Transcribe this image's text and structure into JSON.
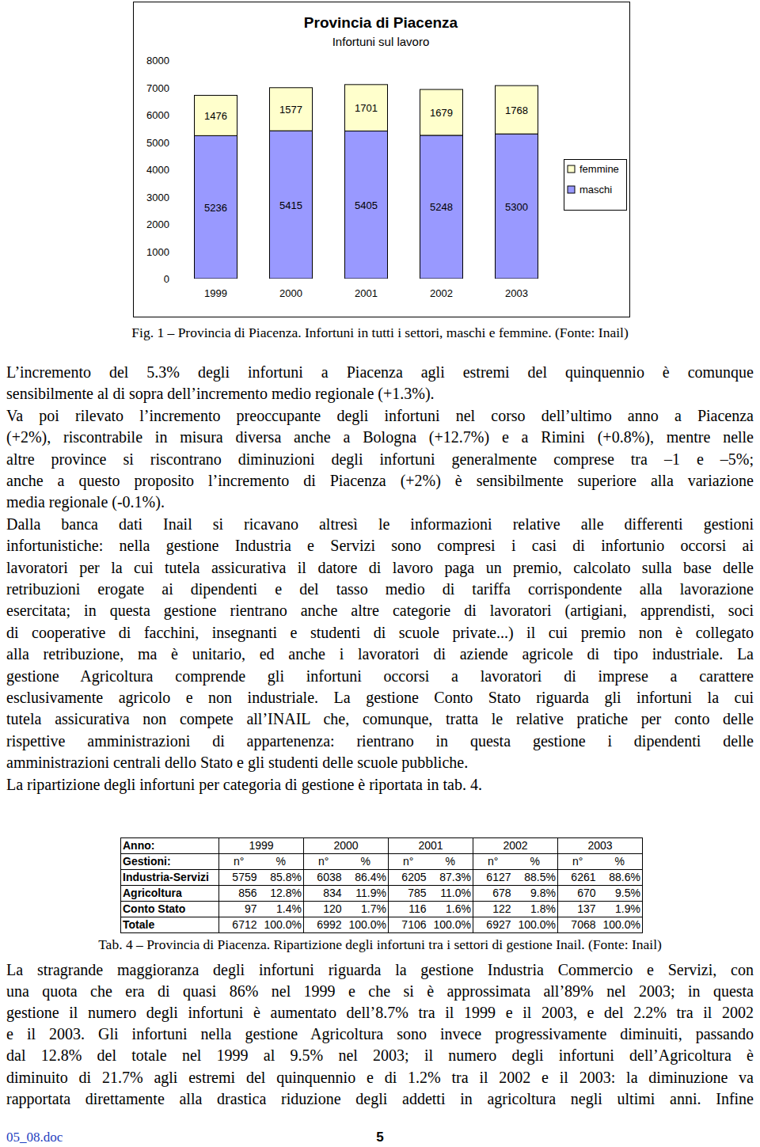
{
  "chart_data": {
    "type": "bar",
    "stacked": true,
    "title": "Provincia di Piacenza",
    "subtitle": "Infortuni sul lavoro",
    "categories": [
      "1999",
      "2000",
      "2001",
      "2002",
      "2003"
    ],
    "series": [
      {
        "name": "maschi",
        "color": "#9999ff",
        "values": [
          5236,
          5415,
          5405,
          5248,
          5300
        ]
      },
      {
        "name": "femmine",
        "color": "#ffffcc",
        "values": [
          1476,
          1577,
          1701,
          1679,
          1768
        ]
      }
    ],
    "ylim": [
      0,
      8000
    ],
    "yticks": [
      0,
      1000,
      2000,
      3000,
      4000,
      5000,
      6000,
      7000,
      8000
    ],
    "grid": false,
    "legend": "right",
    "data_labels": true
  },
  "figure_caption": "Fig. 1 – Provincia di Piacenza. Infortuni in tutti i settori, maschi e femmine. (Fonte: Inail)",
  "body_before_table": [
    [
      "L’incremento del 5.3% degli infortuni a Piacenza agli estremi del quinquennio è comunque",
      "sensibilmente al di sopra dell’incremento medio regionale (+1.3%)."
    ],
    [
      "Va poi rilevato l’incremento preoccupante degli infortuni nel corso dell’ultimo anno a Piacenza",
      "(+2%), riscontrabile in misura diversa anche a Bologna (+12.7%) e a Rimini (+0.8%), mentre nelle",
      "altre province si riscontrano diminuzioni degli infortuni generalmente comprese tra –1 e –5%;",
      "anche a questo proposito l’incremento di Piacenza (+2%) è sensibilmente superiore alla variazione",
      "media regionale (-0.1%)."
    ],
    [
      "Dalla banca dati Inail si ricavano altresì le informazioni relative alle differenti gestioni",
      "infortunistiche: nella gestione Industria e Servizi sono compresi i casi di infortunio occorsi ai",
      "lavoratori per la cui tutela assicurativa il datore di lavoro paga un premio, calcolato sulla base delle",
      "retribuzioni erogate ai dipendenti e del tasso medio di tariffa corrispondente alla lavorazione",
      "esercitata; in questa gestione rientrano anche altre categorie di lavoratori (artigiani, apprendisti, soci",
      "di cooperative di facchini, insegnanti e studenti di scuole private...) il cui premio non è collegato",
      "alla retribuzione, ma è unitario, ed anche i lavoratori di aziende agricole di tipo industriale. La",
      "gestione Agricoltura comprende gli infortuni occorsi a lavoratori di imprese a carattere",
      "esclusivamente agricolo e non industriale. La gestione Conto Stato riguarda gli infortuni la cui",
      "tutela assicurativa non compete all’INAIL che, comunque, tratta le relative pratiche per conto delle",
      "rispettive amministrazioni di appartenenza: rientrano in questa gestione i dipendenti delle",
      "amministrazioni centrali dello Stato e gli studenti delle scuole pubbliche."
    ],
    [
      "La ripartizione degli infortuni per categoria di gestione è riportata in tab. 4."
    ]
  ],
  "table": {
    "header": {
      "label": "Anno:",
      "years": [
        1999,
        2000,
        2001,
        2002,
        2003
      ]
    },
    "subheader": {
      "label": "Gestioni:",
      "columns": [
        "n°",
        "%"
      ]
    },
    "rows": [
      {
        "label": "Industria-Servizi",
        "n": [
          5759,
          6038,
          6205,
          6127,
          6261
        ],
        "pct": [
          "85.8%",
          "86.4%",
          "87.3%",
          "88.5%",
          "88.6%"
        ]
      },
      {
        "label": "Agricoltura",
        "n": [
          856,
          834,
          785,
          678,
          670
        ],
        "pct": [
          "12.8%",
          "11.9%",
          "11.0%",
          "9.8%",
          "9.5%"
        ]
      },
      {
        "label": "Conto Stato",
        "n": [
          97,
          120,
          116,
          122,
          137
        ],
        "pct": [
          "1.4%",
          "1.7%",
          "1.6%",
          "1.8%",
          "1.9%"
        ]
      },
      {
        "label": "Totale",
        "n": [
          6712,
          6992,
          7106,
          6927,
          7068
        ],
        "pct": [
          "100.0%",
          "100.0%",
          "100.0%",
          "100.0%",
          "100.0%"
        ]
      }
    ]
  },
  "table_caption": "Tab. 4 – Provincia di Piacenza. Ripartizione degli infortuni tra i settori di gestione Inail. (Fonte: Inail)",
  "body_after_table": [
    [
      "La stragrande maggioranza degli infortuni riguarda la gestione Industria Commercio e Servizi, con",
      "una quota che era di quasi 86% nel 1999 e che si è approssimata all’89% nel 2003; in questa",
      "gestione il numero degli infortuni è aumentato dell’8.7% tra il 1999 e il 2003, e del 2.2% tra il 2002",
      "e il 2003. Gli infortuni nella gestione Agricoltura sono invece progressivamente diminuiti, passando",
      "dal 12.8% del totale nel 1999 al 9.5% nel 2003; il numero degli infortuni dell’Agricoltura è",
      "diminuito di 21.7% agli estremi del quinquennio e di 1.2% tra il 2002 e il 2003: la diminuzione va",
      "rapportata direttamente alla drastica riduzione degli addetti in agricoltura negli ultimi anni. Infine"
    ]
  ],
  "footer": {
    "file": "05_08.doc",
    "page": "5"
  }
}
